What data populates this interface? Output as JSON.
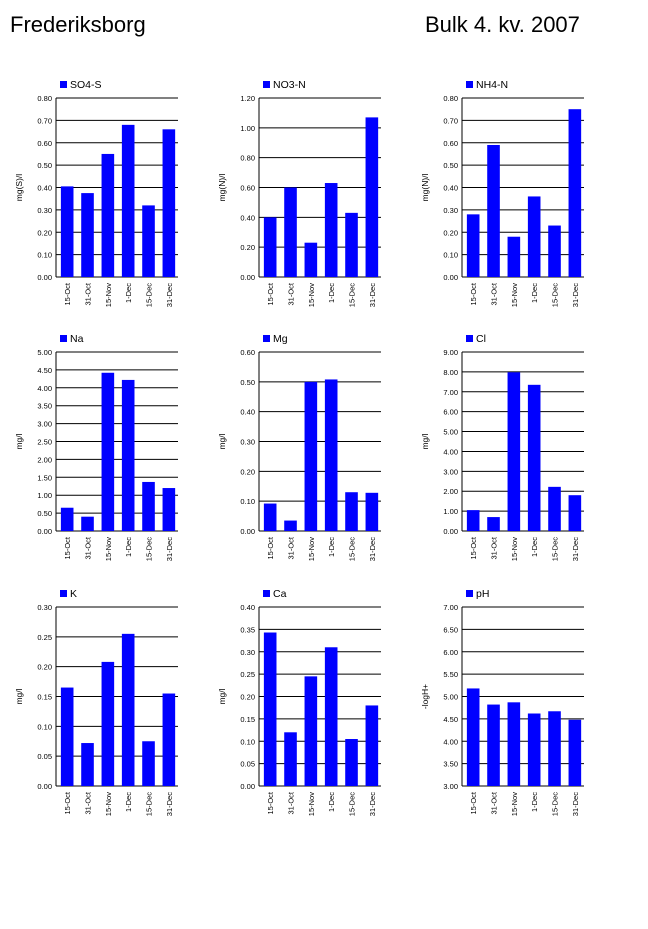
{
  "header": {
    "station": "Frederiksborg",
    "period": "Bulk  4. kv. 2007"
  },
  "colors": {
    "bar": "#0000FF",
    "grid": "#000000"
  },
  "chart_data": [
    {
      "type": "bar",
      "legend": "SO4-S",
      "ylabel": "mg(S)/l",
      "categories": [
        "15-Oct",
        "31-Oct",
        "15-Nov",
        "1-Dec",
        "15-Dec",
        "31-Dec"
      ],
      "values": [
        0.405,
        0.375,
        0.55,
        0.68,
        0.32,
        0.66
      ],
      "ylim": [
        0,
        0.8
      ],
      "yticks": [
        "0.00",
        "0.10",
        "0.20",
        "0.30",
        "0.40",
        "0.50",
        "0.60",
        "0.70",
        "0.80"
      ],
      "grid": true
    },
    {
      "type": "bar",
      "legend": "NO3-N",
      "ylabel": "mg(N)/l",
      "categories": [
        "15-Oct",
        "31-Oct",
        "15-Nov",
        "1-Dec",
        "15-Dec",
        "31-Dec"
      ],
      "values": [
        0.4,
        0.6,
        0.23,
        0.63,
        0.43,
        1.07
      ],
      "ylim": [
        0,
        1.2
      ],
      "yticks": [
        "0.00",
        "0.20",
        "0.40",
        "0.60",
        "0.80",
        "1.00",
        "1.20"
      ],
      "grid": true
    },
    {
      "type": "bar",
      "legend": "NH4-N",
      "ylabel": "mg(N)/l",
      "categories": [
        "15-Oct",
        "31-Oct",
        "15-Nov",
        "1-Dec",
        "15-Dec",
        "31-Dec"
      ],
      "values": [
        0.28,
        0.59,
        0.18,
        0.36,
        0.23,
        0.75
      ],
      "ylim": [
        0,
        0.8
      ],
      "yticks": [
        "0.00",
        "0.10",
        "0.20",
        "0.30",
        "0.40",
        "0.50",
        "0.60",
        "0.70",
        "0.80"
      ],
      "grid": true
    },
    {
      "type": "bar",
      "legend": "Na",
      "ylabel": "mg/l",
      "categories": [
        "15-Oct",
        "31-Oct",
        "15-Nov",
        "1-Dec",
        "15-Dec",
        "31-Dec"
      ],
      "values": [
        0.65,
        0.4,
        4.42,
        4.22,
        1.37,
        1.2
      ],
      "ylim": [
        0,
        5
      ],
      "yticks": [
        "0.00",
        "0.50",
        "1.00",
        "1.50",
        "2.00",
        "2.50",
        "3.00",
        "3.50",
        "4.00",
        "4.50",
        "5.00"
      ],
      "grid": true
    },
    {
      "type": "bar",
      "legend": "Mg",
      "ylabel": "mg/l",
      "categories": [
        "15-Oct",
        "31-Oct",
        "15-Nov",
        "1-Dec",
        "15-Dec",
        "31-Dec"
      ],
      "values": [
        0.092,
        0.035,
        0.5,
        0.508,
        0.13,
        0.128
      ],
      "ylim": [
        0,
        0.6
      ],
      "yticks": [
        "0.00",
        "0.10",
        "0.20",
        "0.30",
        "0.40",
        "0.50",
        "0.60"
      ],
      "grid": true
    },
    {
      "type": "bar",
      "legend": "Cl",
      "ylabel": "mg/l",
      "categories": [
        "15-Oct",
        "31-Oct",
        "15-Nov",
        "1-Dec",
        "15-Dec",
        "31-Dec"
      ],
      "values": [
        1.05,
        0.7,
        7.98,
        7.35,
        2.22,
        1.8
      ],
      "ylim": [
        0,
        9
      ],
      "yticks": [
        "0.00",
        "1.00",
        "2.00",
        "3.00",
        "4.00",
        "5.00",
        "6.00",
        "7.00",
        "8.00",
        "9.00"
      ],
      "grid": true
    },
    {
      "type": "bar",
      "legend": "K",
      "ylabel": "mg/l",
      "categories": [
        "15-Oct",
        "31-Oct",
        "15-Nov",
        "1-Dec",
        "15-Dec",
        "31-Dec"
      ],
      "values": [
        0.165,
        0.072,
        0.208,
        0.255,
        0.075,
        0.155
      ],
      "ylim": [
        0,
        0.3
      ],
      "yticks": [
        "0.00",
        "0.05",
        "0.10",
        "0.15",
        "0.20",
        "0.25",
        "0.30"
      ],
      "grid": true
    },
    {
      "type": "bar",
      "legend": "Ca",
      "ylabel": "mg/l",
      "categories": [
        "15-Oct",
        "31-Oct",
        "15-Nov",
        "1-Dec",
        "15-Dec",
        "31-Dec"
      ],
      "values": [
        0.343,
        0.12,
        0.245,
        0.31,
        0.105,
        0.18
      ],
      "ylim": [
        0,
        0.4
      ],
      "yticks": [
        "0.00",
        "0.05",
        "0.10",
        "0.15",
        "0.20",
        "0.25",
        "0.30",
        "0.35",
        "0.40"
      ],
      "grid": true
    },
    {
      "type": "bar",
      "legend": "pH",
      "ylabel": "-logH+",
      "categories": [
        "15-Oct",
        "31-Oct",
        "15-Nov",
        "1-Dec",
        "15-Dec",
        "31-Dec"
      ],
      "values": [
        5.18,
        4.82,
        4.87,
        4.62,
        4.67,
        4.48
      ],
      "ylim": [
        3,
        7
      ],
      "yticks": [
        "3.00",
        "3.50",
        "4.00",
        "4.50",
        "5.00",
        "5.50",
        "6.00",
        "6.50",
        "7.00"
      ],
      "grid": true
    }
  ]
}
